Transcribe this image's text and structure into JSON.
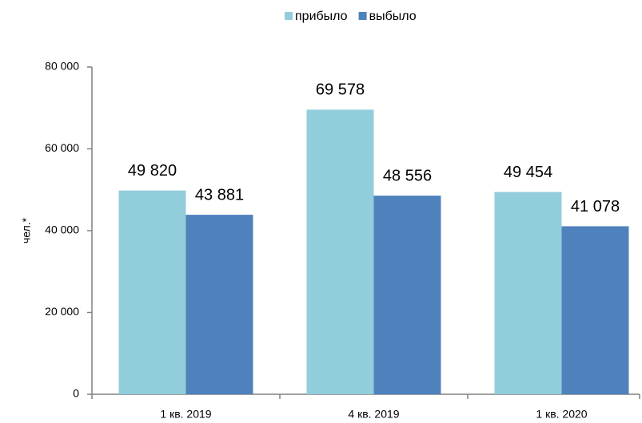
{
  "chart_data": {
    "type": "bar",
    "y_label": "чел.*",
    "categories": [
      "1 кв. 2019",
      "4 кв. 2019",
      "1 кв. 2020"
    ],
    "series": [
      {
        "name": "прибыло",
        "color": "#92cddc",
        "values": [
          49820,
          69578,
          49454
        ],
        "value_labels": [
          "49 820",
          "69 578",
          "49 454"
        ]
      },
      {
        "name": "выбыло",
        "color": "#4f81bd",
        "values": [
          43881,
          48556,
          41078
        ],
        "value_labels": [
          "43 881",
          "48 556",
          "41 078"
        ]
      }
    ],
    "ylim": [
      0,
      80000
    ],
    "yticks": [
      0,
      {
        "value": 20000,
        "label": "20 000"
      },
      {
        "value": 40000,
        "label": "40 000"
      },
      {
        "value": 60000,
        "label": "60 000"
      },
      {
        "value": 80000,
        "label": "80 000"
      }
    ],
    "legend": "top",
    "grid": false
  }
}
